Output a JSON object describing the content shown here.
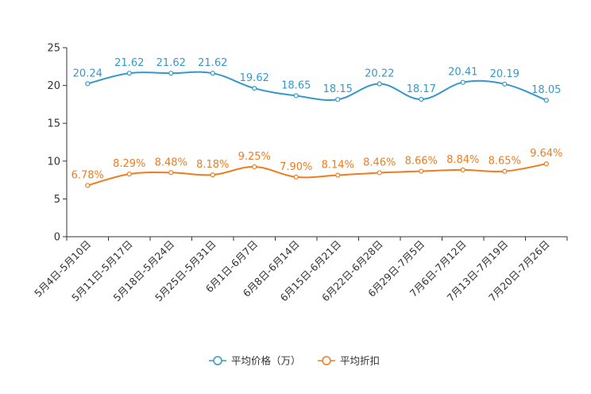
{
  "chart_data": {
    "type": "line",
    "title": "",
    "xlabel": "",
    "ylabel": "",
    "ylim": [
      0,
      25
    ],
    "yticks": [
      0,
      5,
      10,
      15,
      20,
      25
    ],
    "grid": false,
    "legend_position": "bottom-center",
    "categories": [
      "5月4日-5月10日",
      "5月11日-5月17日",
      "5月18日-5月24日",
      "5月25日-5月31日",
      "6月1日-6月7日",
      "6月8日-6月14日",
      "6月15日-6月21日",
      "6月22日-6月28日",
      "6月29日-7月5日",
      "7月6日-7月12日",
      "7月13日-7月19日",
      "7月20日-7月26日"
    ],
    "series": [
      {
        "name": "平均价格（万）",
        "color": "#3399cc",
        "values": [
          20.24,
          21.62,
          21.62,
          21.62,
          19.62,
          18.65,
          18.15,
          20.22,
          18.17,
          20.41,
          20.19,
          18.05
        ],
        "labels": [
          "20.24",
          "21.62",
          "21.62",
          "21.62",
          "19.62",
          "18.65",
          "18.15",
          "20.22",
          "18.17",
          "20.41",
          "20.19",
          "18.05"
        ]
      },
      {
        "name": "平均折扣",
        "color": "#f07c1e",
        "values": [
          6.78,
          8.29,
          8.48,
          8.18,
          9.25,
          7.9,
          8.14,
          8.46,
          8.66,
          8.84,
          8.65,
          9.64
        ],
        "labels": [
          "6.78%",
          "8.29%",
          "8.48%",
          "8.18%",
          "9.25%",
          "7.90%",
          "8.14%",
          "8.46%",
          "8.66%",
          "8.84%",
          "8.65%",
          "9.64%"
        ]
      }
    ]
  }
}
